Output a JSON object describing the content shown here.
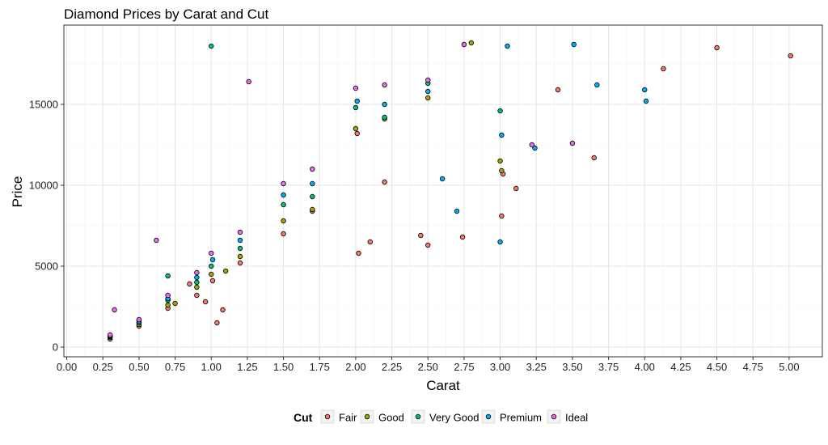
{
  "chart_data": {
    "type": "scatter",
    "title": "Diamond Prices by Carat and Cut",
    "xlabel": "Carat",
    "ylabel": "Price",
    "xlim": [
      -0.02,
      5.23
    ],
    "ylim": [
      -600,
      19900
    ],
    "x_ticks": [
      "0.00",
      "0.25",
      "0.50",
      "0.75",
      "1.00",
      "1.25",
      "1.50",
      "1.75",
      "2.00",
      "2.25",
      "2.50",
      "2.75",
      "3.00",
      "3.25",
      "3.50",
      "3.75",
      "4.00",
      "4.25",
      "4.50",
      "4.75",
      "5.00"
    ],
    "y_ticks": [
      "0",
      "5000",
      "10000",
      "15000"
    ],
    "grid": true,
    "legend": {
      "title": "Cut",
      "position": "bottom",
      "entries": [
        "Fair",
        "Good",
        "Very Good",
        "Premium",
        "Ideal"
      ]
    },
    "series": [
      {
        "name": "Fair",
        "color": "#F8766D",
        "x": [
          0.3,
          0.5,
          0.7,
          0.9,
          1.01,
          1.2,
          1.5,
          1.7,
          2.01,
          2.2,
          2.5,
          3.01,
          3.02,
          3.11,
          3.4,
          3.65,
          4.13,
          4.5,
          5.01,
          0.96,
          1.04,
          2.02,
          2.1,
          2.45,
          2.74,
          0.85,
          1.08
        ],
        "y": [
          500,
          1300,
          2400,
          3200,
          4100,
          5200,
          7000,
          8400,
          13200,
          10200,
          6300,
          8100,
          10700,
          9800,
          15900,
          11700,
          17200,
          18500,
          18000,
          2800,
          1500,
          5800,
          6500,
          6900,
          6800,
          3900,
          2300
        ]
      },
      {
        "name": "Good",
        "color": "#A3A500",
        "x": [
          0.3,
          0.5,
          0.7,
          0.9,
          1.0,
          1.2,
          1.5,
          1.7,
          2.0,
          2.2,
          2.5,
          3.0,
          3.01,
          0.75,
          1.1,
          2.8
        ],
        "y": [
          600,
          1400,
          2600,
          3700,
          4500,
          5600,
          7800,
          8500,
          13500,
          14100,
          15400,
          11500,
          10900,
          2700,
          4700,
          18800
        ]
      },
      {
        "name": "Very Good",
        "color": "#00BF7D",
        "x": [
          0.3,
          0.5,
          0.7,
          0.9,
          1.0,
          1.2,
          1.5,
          1.7,
          2.0,
          2.2,
          2.5,
          3.0,
          1.0,
          0.7
        ],
        "y": [
          650,
          1500,
          2900,
          4000,
          5000,
          6100,
          8800,
          9300,
          14800,
          14200,
          16300,
          14600,
          18600,
          4400
        ]
      },
      {
        "name": "Premium",
        "color": "#00B0F6",
        "x": [
          0.3,
          0.5,
          0.7,
          0.9,
          1.01,
          1.2,
          1.5,
          1.7,
          2.01,
          2.2,
          2.5,
          3.0,
          3.01,
          3.05,
          3.24,
          3.51,
          3.67,
          4.0,
          4.01,
          2.7,
          2.6
        ],
        "y": [
          700,
          1600,
          3000,
          4300,
          5400,
          6600,
          9400,
          10100,
          15200,
          15000,
          15800,
          6500,
          13100,
          18600,
          12300,
          18700,
          16200,
          15900,
          15200,
          8400,
          10400
        ]
      },
      {
        "name": "Ideal",
        "color": "#E76BF3",
        "x": [
          0.3,
          0.5,
          0.7,
          0.9,
          1.0,
          1.2,
          1.5,
          1.7,
          2.0,
          2.2,
          2.5,
          3.5,
          3.22,
          0.62,
          0.33,
          1.26,
          2.75
        ],
        "y": [
          750,
          1700,
          3200,
          4600,
          5800,
          7100,
          10100,
          11000,
          16000,
          16200,
          16500,
          12600,
          12500,
          6600,
          2300,
          16400,
          18700
        ]
      }
    ]
  }
}
